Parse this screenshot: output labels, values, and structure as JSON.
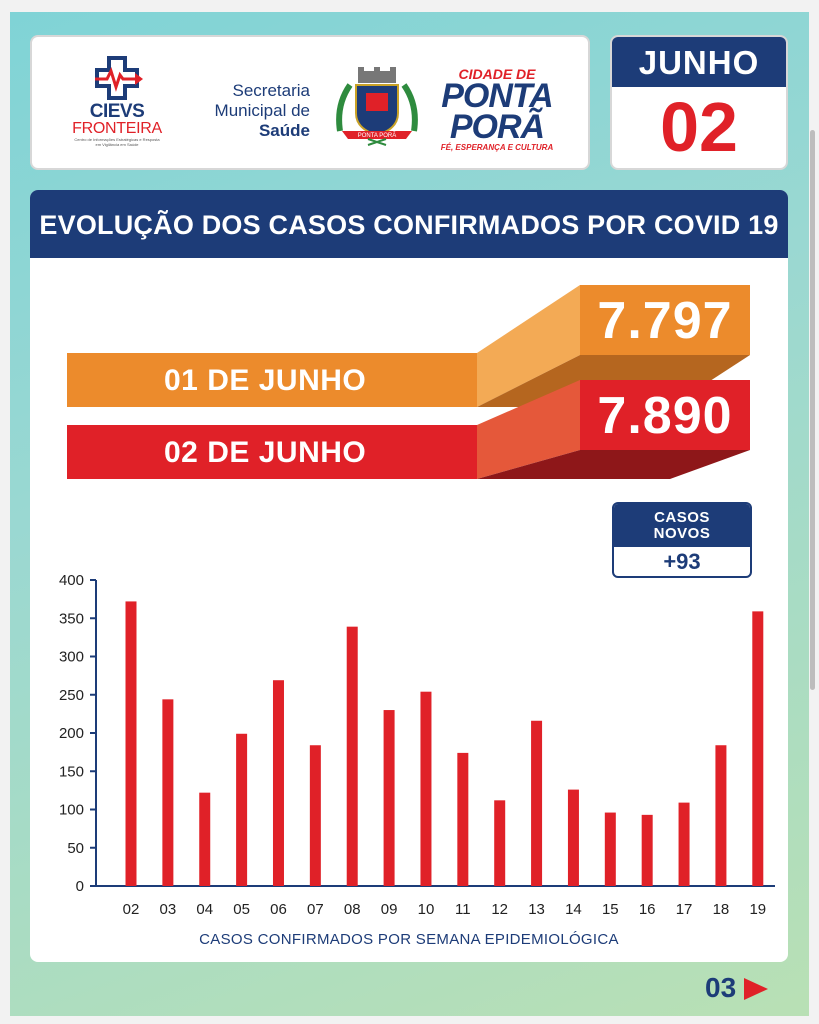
{
  "header": {
    "cievs": {
      "title": "CIEVS",
      "subtitle": "FRONTEIRA",
      "caption": "Centro de Informações Estratégicas e Resposta em Vigilância em Saúde"
    },
    "secretaria": {
      "line1": "Secretaria",
      "line2": "Municipal de",
      "line3": "Saúde"
    },
    "crest": {
      "ribbon": "PONTA PORÃ"
    },
    "cidade": {
      "top": "CIDADE DE",
      "main": "PONTA PORÃ",
      "tagline": "FÉ, ESPERANÇA E CULTURA"
    }
  },
  "date": {
    "month": "JUNHO",
    "day": "02"
  },
  "panel": {
    "title": "EVOLUÇÃO DOS CASOS CONFIRMADOS POR COVID 19",
    "comparison": [
      {
        "label": "01 DE JUNHO",
        "value": "7.797",
        "color": "#ec8b2c"
      },
      {
        "label": "02 DE JUNHO",
        "value": "7.890",
        "color": "#e02128"
      }
    ],
    "novos": {
      "title_line1": "CASOS",
      "title_line2": "NOVOS",
      "value": "+93"
    }
  },
  "chart_data": {
    "type": "bar",
    "title": "",
    "xlabel": "CASOS CONFIRMADOS POR SEMANA EPIDEMIOLÓGICA",
    "ylabel": "",
    "ylim": [
      0,
      400
    ],
    "yticks": [
      0,
      50,
      100,
      150,
      200,
      250,
      300,
      350,
      400
    ],
    "categories": [
      "02",
      "03",
      "04",
      "05",
      "06",
      "07",
      "08",
      "09",
      "10",
      "11",
      "12",
      "13",
      "14",
      "15",
      "16",
      "17",
      "18",
      "19"
    ],
    "values": [
      372,
      244,
      122,
      199,
      269,
      184,
      339,
      230,
      254,
      174,
      112,
      216,
      126,
      96,
      93,
      109,
      184,
      359
    ],
    "bar_color": "#e02128",
    "axis_color": "#1d3c78"
  },
  "footer": {
    "page": "03"
  },
  "colors": {
    "navy": "#1d3c78",
    "red": "#e02128",
    "orange": "#ec8b2c"
  }
}
